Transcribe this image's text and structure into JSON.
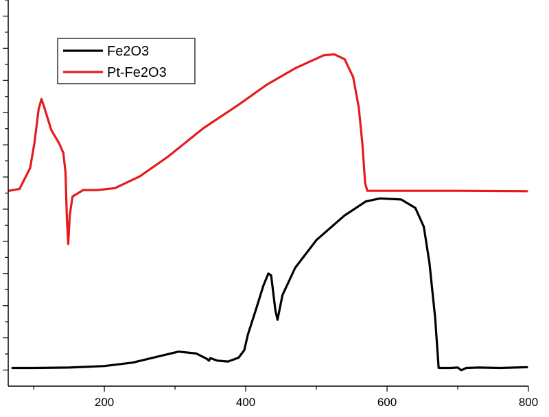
{
  "chart_data": {
    "type": "line",
    "title": "",
    "xlabel": "",
    "ylabel": "",
    "xlim": [
      64,
      800
    ],
    "ylim": [
      0,
      1
    ],
    "x_ticks": [
      200,
      400,
      600,
      800
    ],
    "x_tick_labels": [
      "200",
      "400",
      "600",
      "800"
    ],
    "y_tick_labels_shown": false,
    "grid": false,
    "legend_position": "top-left",
    "series": [
      {
        "name": "Fe2O3",
        "color": "#000000",
        "points": [
          [
            70,
            0.048
          ],
          [
            100,
            0.048
          ],
          [
            150,
            0.049
          ],
          [
            200,
            0.053
          ],
          [
            240,
            0.062
          ],
          [
            280,
            0.08
          ],
          [
            305,
            0.091
          ],
          [
            330,
            0.086
          ],
          [
            345,
            0.072
          ],
          [
            348,
            0.067
          ],
          [
            350,
            0.074
          ],
          [
            360,
            0.067
          ],
          [
            375,
            0.065
          ],
          [
            390,
            0.075
          ],
          [
            398,
            0.095
          ],
          [
            403,
            0.135
          ],
          [
            415,
            0.205
          ],
          [
            425,
            0.265
          ],
          [
            432,
            0.297
          ],
          [
            436,
            0.292
          ],
          [
            442,
            0.2
          ],
          [
            445,
            0.175
          ],
          [
            452,
            0.24
          ],
          [
            470,
            0.312
          ],
          [
            500,
            0.385
          ],
          [
            540,
            0.45
          ],
          [
            570,
            0.487
          ],
          [
            590,
            0.495
          ],
          [
            620,
            0.492
          ],
          [
            640,
            0.47
          ],
          [
            652,
            0.42
          ],
          [
            660,
            0.325
          ],
          [
            668,
            0.18
          ],
          [
            673,
            0.048
          ],
          [
            690,
            0.048
          ],
          [
            700,
            0.049
          ],
          [
            705,
            0.042
          ],
          [
            712,
            0.048
          ],
          [
            730,
            0.049
          ],
          [
            760,
            0.048
          ],
          [
            798,
            0.05
          ]
        ]
      },
      {
        "name": "Pt-Fe2O3",
        "color": "#e41a1c",
        "points": [
          [
            65,
            0.515
          ],
          [
            80,
            0.52
          ],
          [
            95,
            0.575
          ],
          [
            101,
            0.64
          ],
          [
            107,
            0.73
          ],
          [
            111,
            0.757
          ],
          [
            115,
            0.735
          ],
          [
            125,
            0.675
          ],
          [
            136,
            0.64
          ],
          [
            142,
            0.615
          ],
          [
            145,
            0.565
          ],
          [
            147,
            0.44
          ],
          [
            149,
            0.375
          ],
          [
            151,
            0.45
          ],
          [
            155,
            0.5
          ],
          [
            170,
            0.517
          ],
          [
            190,
            0.517
          ],
          [
            215,
            0.522
          ],
          [
            250,
            0.553
          ],
          [
            290,
            0.605
          ],
          [
            340,
            0.68
          ],
          [
            390,
            0.742
          ],
          [
            430,
            0.795
          ],
          [
            470,
            0.838
          ],
          [
            510,
            0.872
          ],
          [
            525,
            0.875
          ],
          [
            540,
            0.862
          ],
          [
            552,
            0.815
          ],
          [
            560,
            0.735
          ],
          [
            565,
            0.64
          ],
          [
            569,
            0.535
          ],
          [
            572,
            0.515
          ],
          [
            600,
            0.515
          ],
          [
            650,
            0.515
          ],
          [
            700,
            0.515
          ],
          [
            798,
            0.514
          ]
        ]
      }
    ]
  }
}
